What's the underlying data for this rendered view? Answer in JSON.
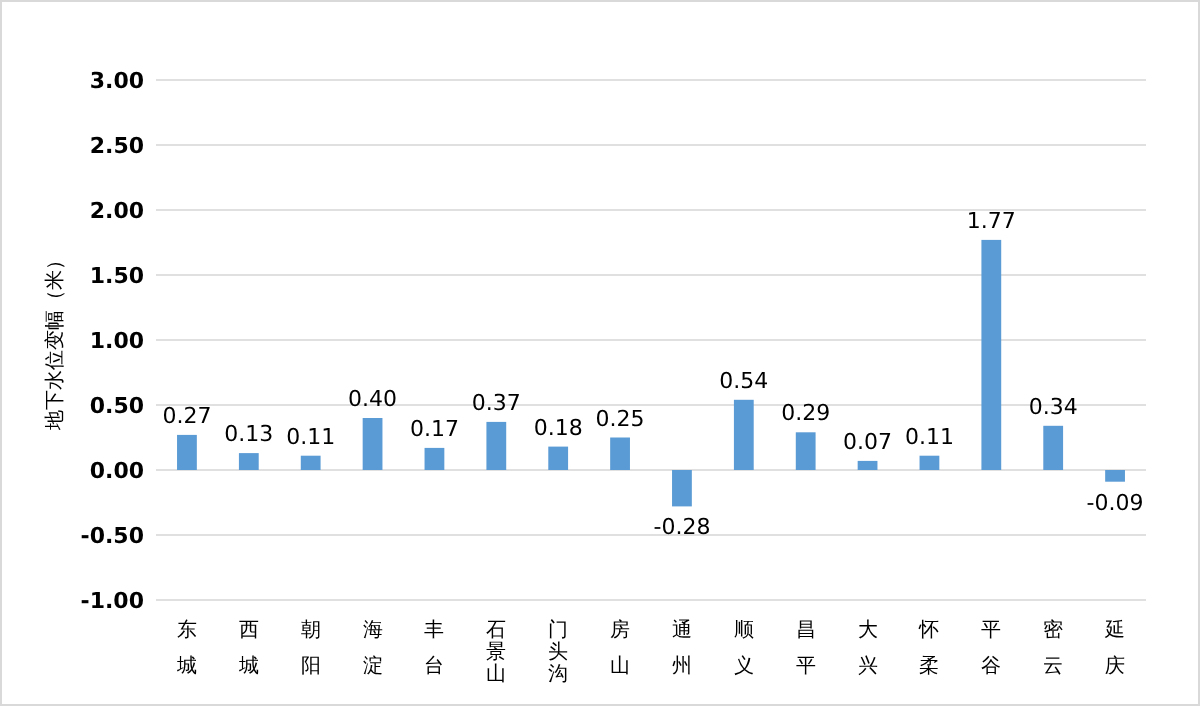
{
  "chart_data": {
    "type": "bar",
    "ylabel": "地下水位变幅（米）",
    "categories": [
      "东城",
      "西城",
      "朝阳",
      "海淀",
      "丰台",
      "石景山",
      "门头沟",
      "房山",
      "通州",
      "顺义",
      "昌平",
      "大兴",
      "怀柔",
      "平谷",
      "密云",
      "延庆"
    ],
    "values": [
      0.27,
      0.13,
      0.11,
      0.4,
      0.17,
      0.37,
      0.18,
      0.25,
      -0.28,
      0.54,
      0.29,
      0.07,
      0.11,
      1.77,
      0.34,
      -0.09
    ],
    "color": "#5b9bd5",
    "ylim": [
      -1,
      3
    ],
    "yticks": [
      {
        "value": -1,
        "label": "-1.00"
      },
      {
        "value": -0.5,
        "label": "-0.50"
      },
      {
        "value": 0,
        "label": "0.00"
      },
      {
        "value": 0.5,
        "label": "0.50"
      },
      {
        "value": 1,
        "label": "1.00"
      },
      {
        "value": 1.5,
        "label": "1.50"
      },
      {
        "value": 2,
        "label": "2.00"
      },
      {
        "value": 2.5,
        "label": "2.50"
      },
      {
        "value": 3,
        "label": "3.00"
      }
    ],
    "value_labels": [
      "0.27",
      "0.13",
      "0.11",
      "0.40",
      "0.17",
      "0.37",
      "0.18",
      "0.25",
      "-0.28",
      "0.54",
      "0.29",
      "0.07",
      "0.11",
      "1.77",
      "0.34",
      "-0.09"
    ],
    "grid": "y"
  }
}
